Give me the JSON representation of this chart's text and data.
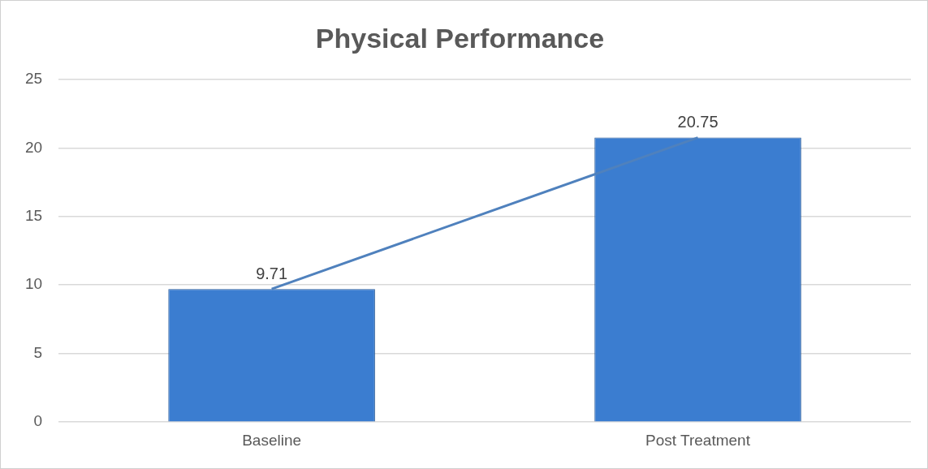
{
  "chart_data": {
    "type": "bar",
    "title": "Physical Performance",
    "categories": [
      "Baseline",
      "Post Treatment"
    ],
    "series": [
      {
        "color": "#3b7dd0",
        "values": [
          9.71,
          20.75
        ],
        "value_labels": [
          "9.71",
          "20.75"
        ]
      },
      {
        "type": "line",
        "color": "#4f81bd",
        "values": [
          9.71,
          20.75
        ],
        "marker": "none"
      }
    ],
    "ylim": [
      0,
      25
    ],
    "yticks": [
      0,
      5,
      10,
      15,
      20,
      25
    ],
    "grid": "y"
  }
}
